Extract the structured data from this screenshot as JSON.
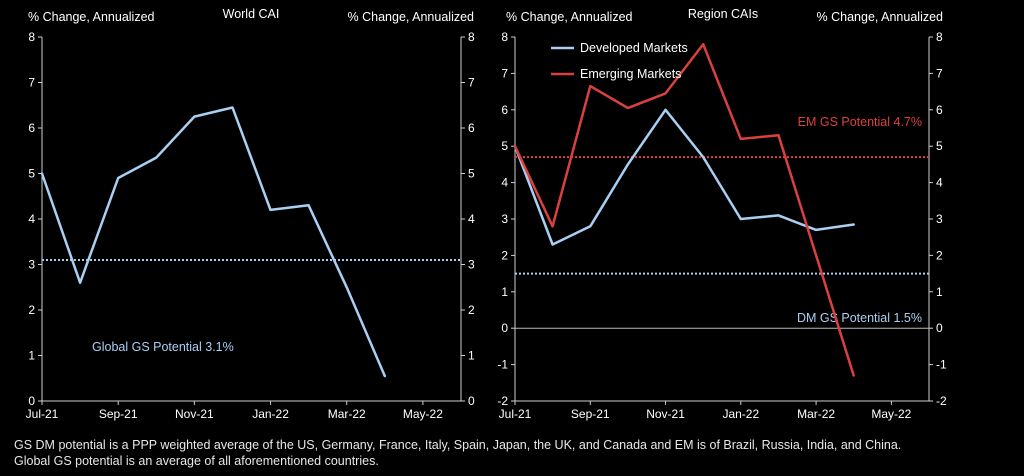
{
  "colors": {
    "background": "#000000",
    "axis": "#cfcfcf",
    "text": "#ffffff",
    "developed": "#a9cff2",
    "emerging": "#d94141",
    "world": "#a9cff2",
    "zero_line": "#bbbbbb"
  },
  "chart_data": [
    {
      "type": "line",
      "title": "World CAI",
      "ylabel_left": "% Change, Annualized",
      "ylabel_right": "% Change, Annualized",
      "ylim": [
        0,
        8
      ],
      "yticks": [
        "0",
        "1",
        "2",
        "3",
        "4",
        "5",
        "6",
        "7",
        "8"
      ],
      "x_tick_labels": [
        "Jul-21",
        "Sep-21",
        "Nov-21",
        "Jan-22",
        "Mar-22",
        "May-22"
      ],
      "x_tick_index": [
        0,
        2,
        4,
        6,
        8,
        10
      ],
      "x_range": [
        0,
        11
      ],
      "series": [
        {
          "key": "world",
          "x": [
            0,
            1,
            2,
            3,
            4,
            5,
            6,
            7,
            8,
            9
          ],
          "values": [
            5.0,
            2.6,
            4.9,
            5.35,
            6.25,
            6.45,
            4.2,
            4.3,
            2.5,
            0.55
          ]
        }
      ],
      "reference_lines": [
        {
          "y": 3.1,
          "label": "Global GS Potential 3.1%",
          "color_key": "world"
        }
      ]
    },
    {
      "type": "line",
      "title": "Region CAIs",
      "ylabel_left": "% Change, Annualized",
      "ylabel_right": "% Change, Annualized",
      "ylim": [
        -2,
        8
      ],
      "yticks": [
        "-2",
        "-1",
        "0",
        "1",
        "2",
        "3",
        "4",
        "5",
        "6",
        "7",
        "8"
      ],
      "x_tick_labels": [
        "Jul-21",
        "Sep-21",
        "Nov-21",
        "Jan-22",
        "Mar-22",
        "May-22"
      ],
      "x_tick_index": [
        0,
        2,
        4,
        6,
        8,
        10
      ],
      "x_range": [
        0,
        11
      ],
      "series": [
        {
          "key": "developed",
          "name": "Developed Markets",
          "x": [
            0,
            1,
            2,
            3,
            4,
            5,
            6,
            7,
            8,
            9
          ],
          "values": [
            5.0,
            2.3,
            2.8,
            4.5,
            6.0,
            4.7,
            3.0,
            3.1,
            2.7,
            2.85
          ]
        },
        {
          "key": "emerging",
          "name": "Emerging Markets",
          "x": [
            0,
            1,
            2,
            3,
            4,
            5,
            6,
            7,
            8,
            9
          ],
          "values": [
            5.0,
            2.8,
            6.65,
            6.05,
            6.45,
            7.8,
            5.2,
            5.3,
            2.0,
            -1.3
          ]
        }
      ],
      "reference_lines": [
        {
          "y": 4.7,
          "label": "EM GS Potential 4.7%",
          "color_key": "emerging"
        },
        {
          "y": 1.5,
          "label": "DM GS Potential 1.5%",
          "color_key": "developed"
        }
      ]
    }
  ],
  "footnote": {
    "line1": "GS DM potential is a PPP weighted average of the US, Germany, France, Italy, Spain, Japan, the UK, and Canada and EM is of Brazil, Russia, India, and China.",
    "line2": "Global GS potential is an average of all aforementioned countries."
  }
}
